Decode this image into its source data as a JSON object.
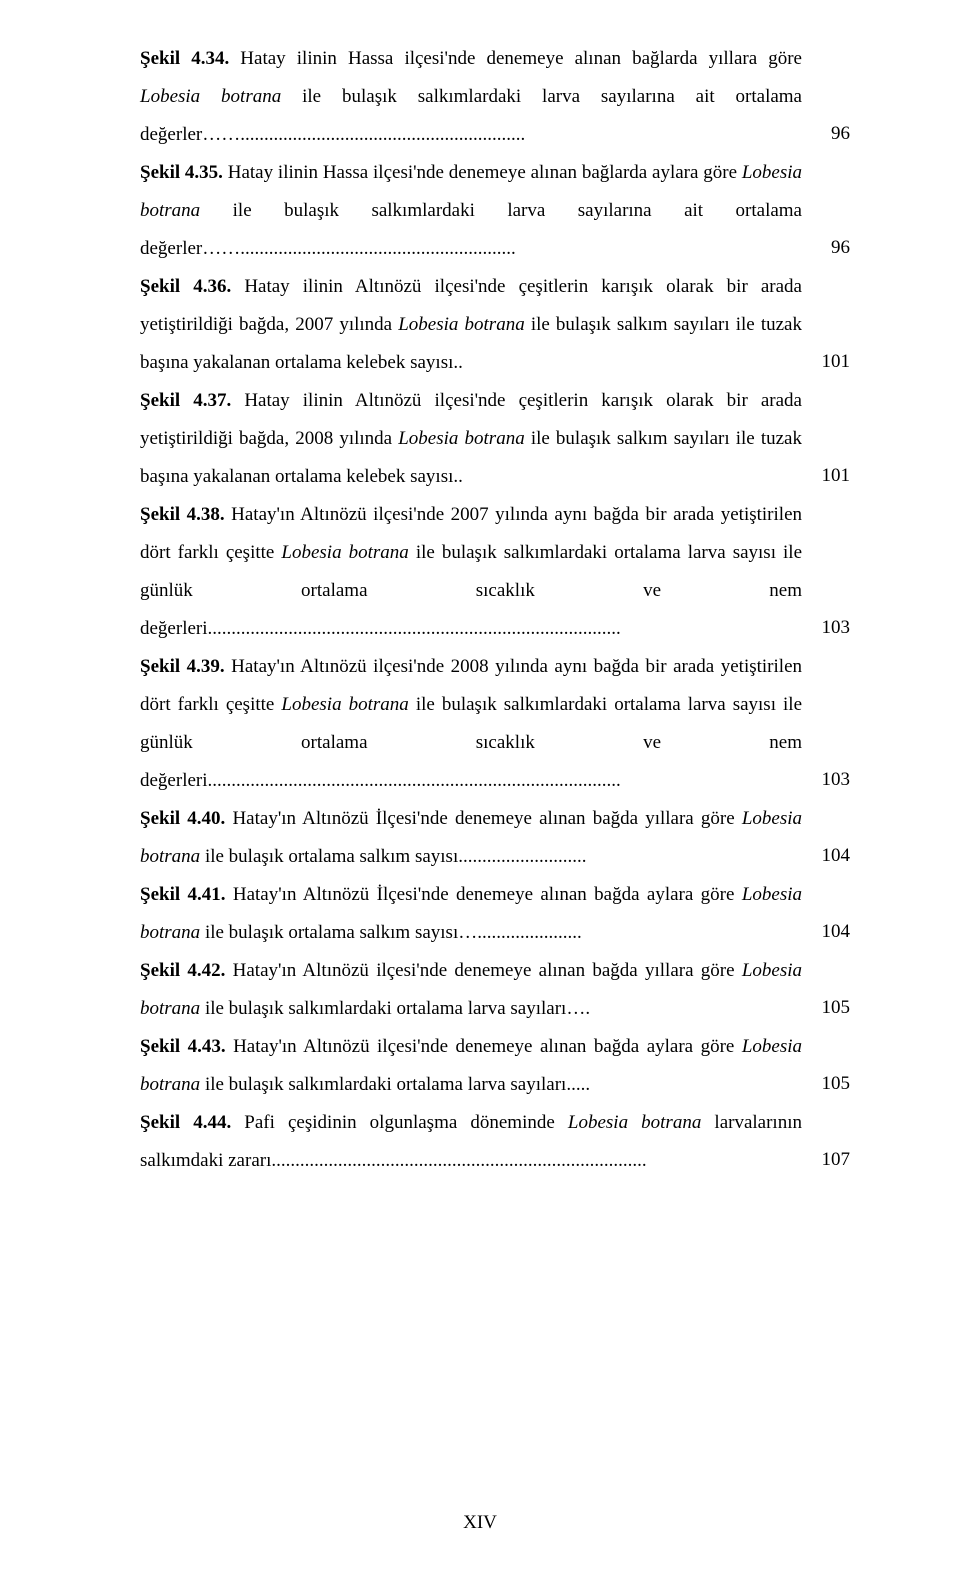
{
  "entries": [
    {
      "label": "Şekil 4.34.",
      "text_parts": [
        {
          "text": " Hatay ilinin Hassa ilçesi'nde denemeye alınan bağlarda yıllara göre ",
          "italic": false
        },
        {
          "text": "Lobesia botrana",
          "italic": true
        },
        {
          "text": " ile bulaşık salkımlardaki larva sayılarına ait ortalama değerler……............................................................",
          "italic": false
        }
      ],
      "page": "96"
    },
    {
      "label": "Şekil 4.35.",
      "text_parts": [
        {
          "text": " Hatay ilinin Hassa ilçesi'nde denemeye alınan bağlarda aylara göre ",
          "italic": false
        },
        {
          "text": "Lobesia botrana",
          "italic": true
        },
        {
          "text": " ile bulaşık salkımlardaki larva sayılarına ait ortalama değerler……..........................................................",
          "italic": false
        }
      ],
      "page": "96"
    },
    {
      "label": "Şekil 4.36.",
      "text_parts": [
        {
          "text": " Hatay ilinin Altınözü ilçesi'nde çeşitlerin karışık olarak bir arada yetiştirildiği bağda, 2007 yılında ",
          "italic": false
        },
        {
          "text": "Lobesia botrana",
          "italic": true
        },
        {
          "text": " ile bulaşık salkım sayıları ile tuzak başına yakalanan ortalama kelebek sayısı..",
          "italic": false
        }
      ],
      "page": "101"
    },
    {
      "label": "Şekil 4.37.",
      "text_parts": [
        {
          "text": " Hatay ilinin Altınözü ilçesi'nde çeşitlerin karışık olarak bir arada yetiştirildiği bağda, 2008 yılında ",
          "italic": false
        },
        {
          "text": "Lobesia botrana",
          "italic": true
        },
        {
          "text": " ile bulaşık salkım sayıları ile tuzak başına yakalanan ortalama kelebek sayısı..",
          "italic": false
        }
      ],
      "page": "101"
    },
    {
      "label": "Şekil 4.38.",
      "text_parts": [
        {
          "text": " Hatay'ın Altınözü ilçesi'nde 2007 yılında aynı bağda bir arada yetiştirilen dört farklı çeşitte ",
          "italic": false
        },
        {
          "text": "Lobesia botrana",
          "italic": true
        },
        {
          "text": " ile bulaşık salkımlardaki ortalama larva sayısı ile günlük ortalama sıcaklık ve nem değerleri.......................................................................................",
          "italic": false
        }
      ],
      "page": "103"
    },
    {
      "label": "Şekil 4.39.",
      "text_parts": [
        {
          "text": " Hatay'ın Altınözü ilçesi'nde 2008 yılında aynı bağda bir arada yetiştirilen dört farklı çeşitte ",
          "italic": false
        },
        {
          "text": "Lobesia botrana",
          "italic": true
        },
        {
          "text": " ile bulaşık salkımlardaki ortalama larva sayısı ile günlük ortalama sıcaklık ve nem değerleri.......................................................................................",
          "italic": false
        }
      ],
      "page": "103"
    },
    {
      "label": "Şekil 4.40.",
      "text_parts": [
        {
          "text": " Hatay'ın Altınözü İlçesi'nde denemeye alınan bağda yıllara göre ",
          "italic": false
        },
        {
          "text": "Lobesia botrana",
          "italic": true
        },
        {
          "text": " ile bulaşık ortalama salkım sayısı...........................",
          "italic": false
        }
      ],
      "page": "104"
    },
    {
      "label": "Şekil 4.41.",
      "text_parts": [
        {
          "text": " Hatay'ın Altınözü İlçesi'nde denemeye alınan bağda aylara göre ",
          "italic": false
        },
        {
          "text": "Lobesia botrana",
          "italic": true
        },
        {
          "text": " ile bulaşık ortalama salkım sayısı…......................",
          "italic": false
        }
      ],
      "page": "104"
    },
    {
      "label": "Şekil 4.42.",
      "text_parts": [
        {
          "text": " Hatay'ın Altınözü ilçesi'nde denemeye alınan bağda yıllara göre ",
          "italic": false
        },
        {
          "text": "Lobesia botrana",
          "italic": true
        },
        {
          "text": " ile bulaşık salkımlardaki ortalama larva sayıları….",
          "italic": false
        }
      ],
      "page": "105"
    },
    {
      "label": "Şekil 4.43.",
      "text_parts": [
        {
          "text": " Hatay'ın Altınözü ilçesi'nde denemeye alınan bağda aylara göre ",
          "italic": false
        },
        {
          "text": "Lobesia botrana",
          "italic": true
        },
        {
          "text": " ile bulaşık salkımlardaki ortalama larva sayıları.....",
          "italic": false
        }
      ],
      "page": "105"
    },
    {
      "label": "Şekil 4.44.",
      "text_parts": [
        {
          "text": " Pafi çeşidinin olgunlaşma döneminde ",
          "italic": false
        },
        {
          "text": "Lobesia botrana",
          "italic": true
        },
        {
          "text": " larvalarının salkımdaki zararı...............................................................................",
          "italic": false
        }
      ],
      "page": "107"
    }
  ],
  "footer": "XIV",
  "colors": {
    "background": "#ffffff",
    "text": "#000000"
  },
  "typography": {
    "font_family": "Times New Roman",
    "font_size_pt": 14
  }
}
